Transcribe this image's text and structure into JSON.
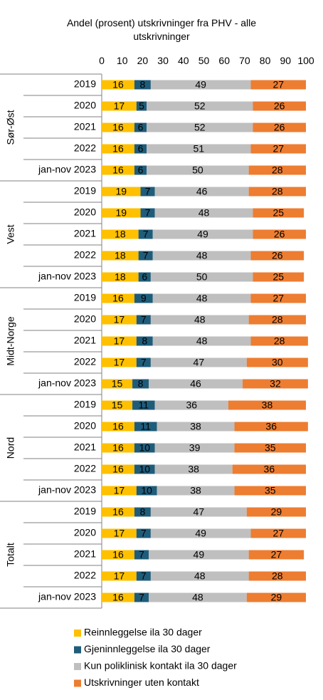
{
  "chart_data": {
    "type": "bar",
    "stacked": true,
    "orientation": "horizontal",
    "title": "Andel (prosent) utskrivninger fra PHV - alle utskrivninger",
    "title_lines": [
      "Andel (prosent) utskrivninger fra PHV - alle",
      "utskrivninger"
    ],
    "xlim": [
      0,
      100
    ],
    "xticks": [
      0,
      10,
      20,
      30,
      40,
      50,
      60,
      70,
      80,
      90,
      100
    ],
    "xtick_labels": [
      "0",
      "10",
      "20",
      "30",
      "40",
      "50",
      "60",
      "70",
      "80",
      "90",
      "100"
    ],
    "grid": false,
    "legend_position": "bottom",
    "series": [
      {
        "name": "Reinnleggelse ila 30 dager",
        "color": "#FFC000",
        "label_color": "#000000"
      },
      {
        "name": "Gjeninnleggelse ila 30 dager",
        "color": "#1F5C7A",
        "label_color": "#000000"
      },
      {
        "name": "Kun poliklinisk kontakt ila 30 dager",
        "color": "#BFBFBF",
        "label_color": "#000000"
      },
      {
        "name": "Utskrivninger uten kontakt",
        "color": "#ED7D31",
        "label_color": "#000000"
      }
    ],
    "groups": [
      {
        "name": "Sør-Øst",
        "rows": [
          {
            "label": "2019",
            "values": [
              16,
              8,
              49,
              27
            ]
          },
          {
            "label": "2020",
            "values": [
              17,
              5,
              52,
              26
            ]
          },
          {
            "label": "2021",
            "values": [
              16,
              6,
              52,
              26
            ]
          },
          {
            "label": "2022",
            "values": [
              16,
              6,
              51,
              27
            ]
          },
          {
            "label": "jan-nov 2023",
            "values": [
              16,
              6,
              50,
              28
            ]
          }
        ]
      },
      {
        "name": "Vest",
        "rows": [
          {
            "label": "2019",
            "values": [
              19,
              7,
              46,
              28
            ]
          },
          {
            "label": "2020",
            "values": [
              19,
              7,
              48,
              25
            ]
          },
          {
            "label": "2021",
            "values": [
              18,
              7,
              49,
              26
            ]
          },
          {
            "label": "2022",
            "values": [
              18,
              7,
              48,
              26
            ]
          },
          {
            "label": "jan-nov 2023",
            "values": [
              18,
              6,
              50,
              25
            ]
          }
        ]
      },
      {
        "name": "Midt-Norge",
        "rows": [
          {
            "label": "2019",
            "values": [
              16,
              9,
              48,
              27
            ]
          },
          {
            "label": "2020",
            "values": [
              17,
              7,
              48,
              28
            ]
          },
          {
            "label": "2021",
            "values": [
              17,
              8,
              48,
              28
            ]
          },
          {
            "label": "2022",
            "values": [
              17,
              7,
              47,
              30
            ]
          },
          {
            "label": "jan-nov 2023",
            "values": [
              15,
              8,
              46,
              32
            ]
          }
        ]
      },
      {
        "name": "Nord",
        "rows": [
          {
            "label": "2019",
            "values": [
              15,
              11,
              36,
              38
            ]
          },
          {
            "label": "2020",
            "values": [
              16,
              11,
              38,
              36
            ]
          },
          {
            "label": "2021",
            "values": [
              16,
              10,
              39,
              35
            ]
          },
          {
            "label": "2022",
            "values": [
              16,
              10,
              38,
              36
            ]
          },
          {
            "label": "jan-nov 2023",
            "values": [
              17,
              10,
              38,
              35
            ]
          }
        ]
      },
      {
        "name": "Totalt",
        "rows": [
          {
            "label": "2019",
            "values": [
              16,
              8,
              47,
              29
            ]
          },
          {
            "label": "2020",
            "values": [
              17,
              7,
              49,
              27
            ]
          },
          {
            "label": "2021",
            "values": [
              16,
              7,
              49,
              27
            ]
          },
          {
            "label": "2022",
            "values": [
              17,
              7,
              48,
              28
            ]
          },
          {
            "label": "jan-nov 2023",
            "values": [
              16,
              7,
              48,
              29
            ]
          }
        ]
      }
    ]
  }
}
